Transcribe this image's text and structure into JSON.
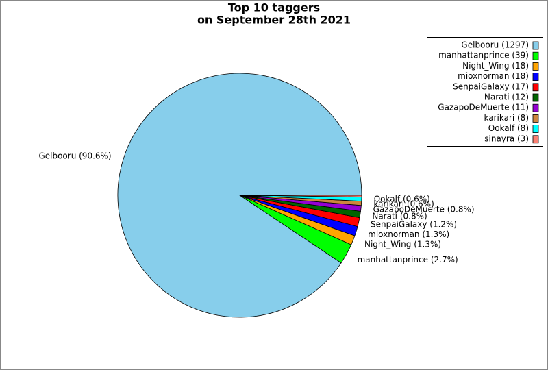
{
  "chart_data": {
    "type": "pie",
    "title": "Top 10 taggers",
    "subtitle": "on September 28th 2021",
    "categories": [
      "Gelbooru",
      "manhattanprince",
      "Night_Wing",
      "mioxnorman",
      "SenpaiGalaxy",
      "Narati",
      "GazapoDeMuerte",
      "karikari",
      "Ookalf",
      "sinayra"
    ],
    "values": [
      1297,
      39,
      18,
      18,
      17,
      12,
      11,
      8,
      8,
      3
    ],
    "value_labels": [
      "Gelbooru (90.6%)",
      "manhattanprince (2.7%)",
      "Night_Wing (1.3%)",
      "mioxnorman (1.3%)",
      "SenpaiGalaxy (1.2%)",
      "Narati (0.8%)",
      "GazapoDeMuerte (0.8%)",
      "karikari (0.6%)",
      "Ookalf (0.6%)",
      null
    ],
    "legend_labels": [
      "Gelbooru (1297)",
      "manhattanprince (39)",
      "Night_Wing (18)",
      "mioxnorman (18)",
      "SenpaiGalaxy (17)",
      "Narati (12)",
      "GazapoDeMuerte (11)",
      "karikari (8)",
      "Ookalf (8)",
      "sinayra (3)"
    ],
    "colors": [
      "#87ceeb",
      "#00ff00",
      "#ffa500",
      "#0000ff",
      "#ff0000",
      "#006400",
      "#9400d3",
      "#cd853f",
      "#00ffff",
      "#fa8072"
    ],
    "legend": "upper right"
  }
}
